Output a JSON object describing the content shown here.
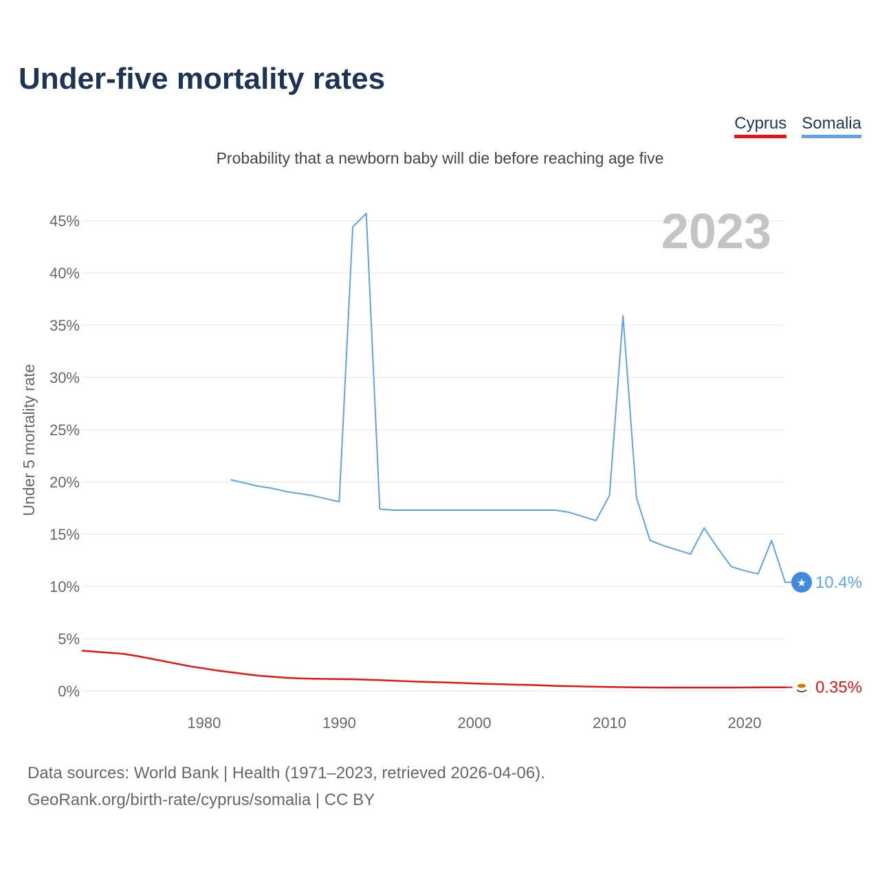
{
  "title": "Under-five mortality rates",
  "subtitle": "Probability that a newborn baby will die before reaching age five",
  "legend": [
    {
      "name": "Cyprus",
      "color": "#e8140f"
    },
    {
      "name": "Somalia",
      "color": "#5ea3e6"
    }
  ],
  "footer": {
    "line1": "Data sources: World Bank | Health (1971–2023, retrieved 2026-04-06).",
    "line2": "GeoRank.org/birth-rate/cyprus/somalia | CC BY"
  },
  "chart_data": {
    "type": "line",
    "title": "Under-five mortality rates",
    "ylabel": "Under 5 mortality rate",
    "xlabel": "",
    "year_label": "2023",
    "ylim": [
      0,
      45
    ],
    "xlim": [
      1971,
      2023
    ],
    "y_ticks": [
      0,
      5,
      10,
      15,
      20,
      25,
      30,
      35,
      40,
      45
    ],
    "y_tick_labels": [
      "0%",
      "5%",
      "10%",
      "15%",
      "20%",
      "25%",
      "30%",
      "35%",
      "40%",
      "45%"
    ],
    "x_ticks": [
      1980,
      1990,
      2000,
      2010,
      2020
    ],
    "x_tick_labels": [
      "1980",
      "1990",
      "2000",
      "2010",
      "2020"
    ],
    "grid": true,
    "series": [
      {
        "name": "Cyprus",
        "color": "#e8140f",
        "end_label": "0.35%",
        "x": [
          1971,
          1972,
          1973,
          1974,
          1975,
          1976,
          1977,
          1978,
          1979,
          1980,
          1981,
          1982,
          1983,
          1984,
          1985,
          1986,
          1987,
          1988,
          1989,
          1990,
          1991,
          1992,
          1993,
          1994,
          1995,
          1996,
          1997,
          1998,
          1999,
          2000,
          2001,
          2002,
          2003,
          2004,
          2005,
          2006,
          2007,
          2008,
          2009,
          2010,
          2011,
          2012,
          2013,
          2014,
          2015,
          2016,
          2017,
          2018,
          2019,
          2020,
          2021,
          2022,
          2023
        ],
        "values": [
          3.85,
          3.75,
          3.65,
          3.55,
          3.35,
          3.1,
          2.85,
          2.6,
          2.35,
          2.15,
          1.95,
          1.78,
          1.62,
          1.47,
          1.36,
          1.27,
          1.2,
          1.17,
          1.15,
          1.14,
          1.12,
          1.08,
          1.03,
          0.98,
          0.93,
          0.88,
          0.84,
          0.8,
          0.76,
          0.72,
          0.68,
          0.64,
          0.6,
          0.57,
          0.53,
          0.49,
          0.46,
          0.43,
          0.4,
          0.38,
          0.36,
          0.34,
          0.33,
          0.32,
          0.32,
          0.32,
          0.32,
          0.32,
          0.32,
          0.33,
          0.34,
          0.35,
          0.35
        ]
      },
      {
        "name": "Somalia",
        "color": "#5ea3e6",
        "end_label": "10.4%",
        "x": [
          1982,
          1983,
          1984,
          1985,
          1986,
          1987,
          1988,
          1989,
          1990,
          1991,
          1992,
          1993,
          1994,
          1995,
          1996,
          1997,
          1998,
          1999,
          2000,
          2001,
          2002,
          2003,
          2004,
          2005,
          2006,
          2007,
          2008,
          2009,
          2010,
          2011,
          2012,
          2013,
          2014,
          2015,
          2016,
          2017,
          2018,
          2019,
          2020,
          2021,
          2022,
          2023
        ],
        "values": [
          20.2,
          19.9,
          19.6,
          19.4,
          19.1,
          18.9,
          18.7,
          18.4,
          18.1,
          44.4,
          45.7,
          17.4,
          17.3,
          17.3,
          17.3,
          17.3,
          17.3,
          17.3,
          17.3,
          17.3,
          17.3,
          17.3,
          17.3,
          17.3,
          17.3,
          17.1,
          16.7,
          16.3,
          18.7,
          35.9,
          18.5,
          14.4,
          13.9,
          13.5,
          13.1,
          15.6,
          13.7,
          11.9,
          11.5,
          11.2,
          14.4,
          10.4
        ]
      }
    ]
  }
}
